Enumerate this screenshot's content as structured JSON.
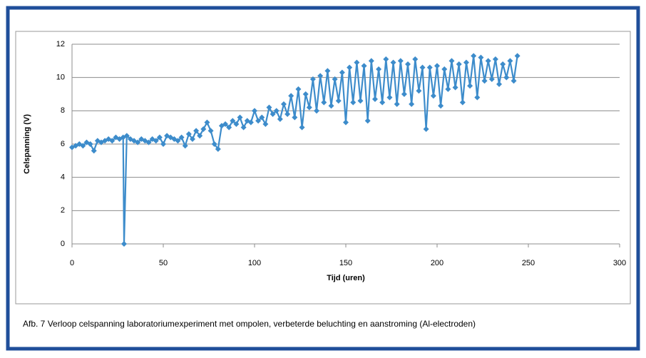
{
  "chart_data": {
    "type": "line",
    "xlabel": "Tijd (uren)",
    "ylabel": "Celspanning (V)",
    "caption": "Afb. 7 Verloop celspanning laboratoriumexperiment met ompolen, verbeterde beluchting en aanstroming (Al-electroden)",
    "color": "#3d8ccb",
    "grid": true,
    "xlim": [
      0,
      300
    ],
    "xticks": [
      0,
      50,
      100,
      150,
      200,
      250,
      300
    ],
    "ylim": [
      0,
      12
    ],
    "yticks": [
      0,
      2,
      4,
      6,
      8,
      10,
      12
    ],
    "x": [
      0,
      2,
      4,
      6,
      8,
      10,
      12,
      14,
      16,
      18,
      20,
      22,
      24,
      26,
      28,
      28.5,
      30,
      32,
      34,
      36,
      38,
      40,
      42,
      44,
      46,
      48,
      50,
      52,
      54,
      56,
      58,
      60,
      62,
      64,
      66,
      68,
      70,
      72,
      74,
      76,
      78,
      80,
      82,
      84,
      86,
      88,
      90,
      92,
      94,
      96,
      98,
      100,
      102,
      104,
      106,
      108,
      110,
      112,
      114,
      116,
      118,
      120,
      122,
      124,
      126,
      128,
      130,
      132,
      134,
      136,
      138,
      140,
      142,
      144,
      146,
      148,
      150,
      152,
      154,
      156,
      158,
      160,
      162,
      164,
      166,
      168,
      170,
      172,
      174,
      176,
      178,
      180,
      182,
      184,
      186,
      188,
      190,
      192,
      194,
      196,
      198,
      200,
      202,
      204,
      206,
      208,
      210,
      212,
      214,
      216,
      218,
      220,
      222,
      224,
      226,
      228,
      230,
      232,
      234,
      236,
      238,
      240,
      242,
      244
    ],
    "values": [
      5.8,
      5.9,
      6.0,
      5.9,
      6.1,
      6.0,
      5.6,
      6.2,
      6.1,
      6.2,
      6.3,
      6.2,
      6.4,
      6.3,
      6.4,
      0,
      6.5,
      6.3,
      6.2,
      6.1,
      6.3,
      6.2,
      6.1,
      6.3,
      6.2,
      6.4,
      6.0,
      6.5,
      6.4,
      6.3,
      6.2,
      6.4,
      5.9,
      6.6,
      6.3,
      6.8,
      6.5,
      6.9,
      7.3,
      6.8,
      6.0,
      5.7,
      7.1,
      7.2,
      7.0,
      7.4,
      7.2,
      7.6,
      7.0,
      7.4,
      7.3,
      8.0,
      7.4,
      7.6,
      7.2,
      8.2,
      7.8,
      8.0,
      7.5,
      8.4,
      7.8,
      8.9,
      7.6,
      9.3,
      7.0,
      9.0,
      8.2,
      9.9,
      8.0,
      10.1,
      8.5,
      10.4,
      8.3,
      9.9,
      8.6,
      10.3,
      7.3,
      10.6,
      8.5,
      10.9,
      8.6,
      10.7,
      7.4,
      11.0,
      8.7,
      10.5,
      8.5,
      11.1,
      8.8,
      10.9,
      8.4,
      11.0,
      9.0,
      10.8,
      8.4,
      11.1,
      9.2,
      10.6,
      6.9,
      10.6,
      8.9,
      10.7,
      8.3,
      10.5,
      9.3,
      11.0,
      9.4,
      10.8,
      8.5,
      10.9,
      9.5,
      11.3,
      8.8,
      11.2,
      9.8,
      11.0,
      9.9,
      11.1,
      9.6,
      10.8,
      10.0,
      11.0,
      9.8,
      11.3
    ]
  }
}
